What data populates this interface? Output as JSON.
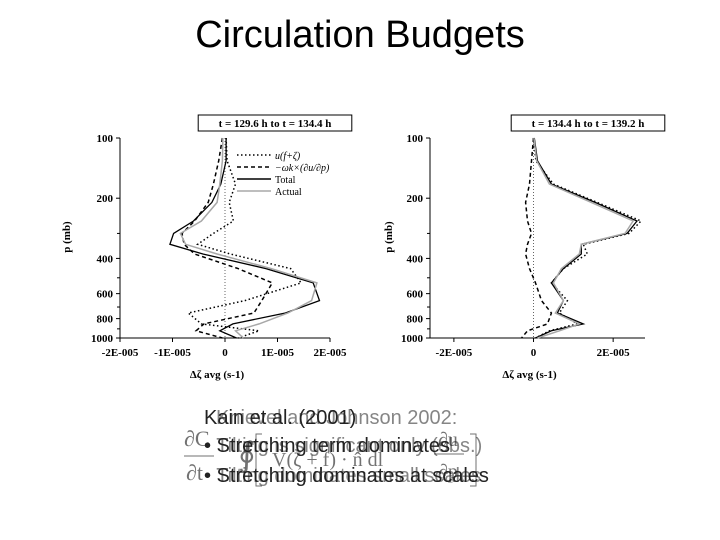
{
  "slide": {
    "title": "Circulation Budgets",
    "overlay_lines": [
      "Kain et al. (2001)",
      "Knievel and Johnson 2002:",
      "• Stretching term dominates",
      "• Tilting is significant only (obs.)",
      "• Stretching dominates at scales",
      "• Tilting dominates small scales"
    ]
  },
  "chart_data": [
    {
      "type": "line",
      "title": "t = 129.6 h to t = 134.4 h",
      "xlabel": "Δζ avg (s-1)",
      "ylabel": "p (mb)",
      "xlim": [
        -2e-05,
        2e-05
      ],
      "ylim": [
        1000,
        100
      ],
      "y_scale": "log",
      "xticks": [
        "-2E-005",
        "-1E-005",
        "0",
        "1E-005",
        "2E-005"
      ],
      "xtick_values": [
        -2e-05,
        -1e-05,
        0,
        1e-05,
        2e-05
      ],
      "yticks": [
        "100",
        "200",
        "400",
        "600",
        "800",
        "1000"
      ],
      "ytick_values": [
        100,
        200,
        400,
        600,
        800,
        1000
      ],
      "legend": [
        "u(f+ζ)",
        "−ωk×(∂u/∂p)",
        "Total",
        "Actual"
      ],
      "legend_position": "top-right",
      "series": [
        {
          "name": "u(f+ζ)",
          "style": "dotted",
          "color": "#000000",
          "x": [
            2e-07,
            4e-07,
            2e-06,
            8e-07,
            1.6e-06,
            -2.2e-06,
            -5.2e-06,
            1e-06,
            1.25e-05,
            1.45e-05,
            3.8e-06,
            -7e-06,
            -4.5e-06,
            6.5e-06,
            2.5e-06
          ],
          "y": [
            100,
            130,
            170,
            210,
            260,
            300,
            340,
            380,
            450,
            530,
            650,
            750,
            850,
            920,
            1000
          ]
        },
        {
          "name": "−ωk×(∂u/∂p)",
          "style": "dashed",
          "color": "#000000",
          "x": [
            -5e-07,
            -1.2e-06,
            -2.2e-06,
            -3.2e-06,
            -5.8e-06,
            -8.2e-06,
            -7.8e-06,
            -5.8e-06,
            2.5e-06,
            9e-06,
            7e-06,
            5.5e-06,
            -4e-06,
            -5.5e-06,
            -5e-07
          ],
          "y": [
            100,
            130,
            170,
            210,
            260,
            300,
            340,
            380,
            450,
            530,
            650,
            750,
            850,
            920,
            1000
          ]
        },
        {
          "name": "Total",
          "style": "solid",
          "color": "#000000",
          "x": [
            2e-07,
            2e-07,
            -8e-07,
            -2.5e-06,
            -6e-06,
            -9.8e-06,
            -1.05e-05,
            -4.2e-06,
            7.8e-06,
            1.68e-05,
            1.8e-05,
            1.15e-05,
            1.5e-06,
            -1e-06,
            2.2e-06
          ],
          "y": [
            100,
            130,
            170,
            210,
            260,
            300,
            340,
            380,
            450,
            530,
            650,
            750,
            850,
            920,
            1000
          ]
        },
        {
          "name": "Actual",
          "style": "solid",
          "color": "#a8a8a8",
          "x": [
            -4e-07,
            -5e-07,
            -1e-06,
            -1.5e-06,
            -4.5e-06,
            -8.5e-06,
            -7.5e-06,
            -1.5e-06,
            8.8e-06,
            1.75e-05,
            1.65e-05,
            1.2e-05,
            6.5e-06,
            2e-06,
            3.5e-06
          ],
          "y": [
            100,
            130,
            170,
            210,
            260,
            300,
            340,
            380,
            450,
            530,
            650,
            750,
            850,
            920,
            1000
          ]
        }
      ]
    },
    {
      "type": "line",
      "title": "t = 134.4 h to t = 139.2 h",
      "xlabel": "Δζ avg (s-1)",
      "ylabel": "p (mb)",
      "xlim": [
        -2.6e-05,
        2.8e-05
      ],
      "ylim": [
        1000,
        100
      ],
      "y_scale": "log",
      "xticks": [
        "-2E-005",
        "0",
        "2E-005"
      ],
      "xtick_values": [
        -2e-05,
        0,
        2e-05
      ],
      "yticks": [
        "100",
        "200",
        "400",
        "600",
        "800",
        "1000"
      ],
      "ytick_values": [
        100,
        200,
        400,
        600,
        800,
        1000
      ],
      "series": [
        {
          "name": "u(f+ζ)",
          "style": "dotted",
          "color": "#000000",
          "x": [
            0,
            6e-07,
            5e-06,
            1.6e-05,
            2.7e-05,
            2.4e-05,
            1.25e-05,
            1.35e-05,
            7.5e-06,
            4.5e-06,
            8.5e-06,
            6.5e-06,
            1.1e-05,
            4e-06,
            5e-07
          ],
          "y": [
            100,
            130,
            170,
            210,
            260,
            300,
            340,
            380,
            450,
            530,
            650,
            750,
            850,
            920,
            1000
          ]
        },
        {
          "name": "−ωk×(∂u/∂p)",
          "style": "dashed",
          "color": "#000000",
          "x": [
            0,
            -5e-07,
            -1e-06,
            -2e-06,
            -1.5e-06,
            -5e-07,
            -1.5e-06,
            -2e-06,
            -1e-06,
            5e-07,
            2e-06,
            4.5e-06,
            3.5e-06,
            -1.5e-06,
            -3e-06
          ],
          "y": [
            100,
            130,
            170,
            210,
            260,
            300,
            340,
            380,
            450,
            530,
            650,
            750,
            850,
            920,
            1000
          ]
        },
        {
          "name": "Total",
          "style": "solid",
          "color": "#000000",
          "x": [
            2e-07,
            1e-06,
            4.5e-06,
            1.55e-05,
            2.6e-05,
            2.35e-05,
            1.2e-05,
            1.2e-05,
            7.5e-06,
            4.5e-06,
            7.5e-06,
            6e-06,
            1.25e-05,
            4.5e-06,
            5e-07
          ],
          "y": [
            100,
            130,
            170,
            210,
            260,
            300,
            340,
            380,
            450,
            530,
            650,
            750,
            850,
            920,
            1000
          ]
        },
        {
          "name": "Actual",
          "style": "solid",
          "color": "#a8a8a8",
          "x": [
            1e-07,
            8e-07,
            4e-06,
            1.45e-05,
            2.5e-05,
            2.3e-05,
            1.2e-05,
            1.15e-05,
            7e-06,
            5e-06,
            7.5e-06,
            5.5e-06,
            1.15e-05,
            6.5e-06,
            1e-06
          ],
          "y": [
            100,
            130,
            170,
            210,
            260,
            300,
            340,
            380,
            450,
            530,
            650,
            750,
            850,
            920,
            1000
          ]
        }
      ]
    }
  ]
}
